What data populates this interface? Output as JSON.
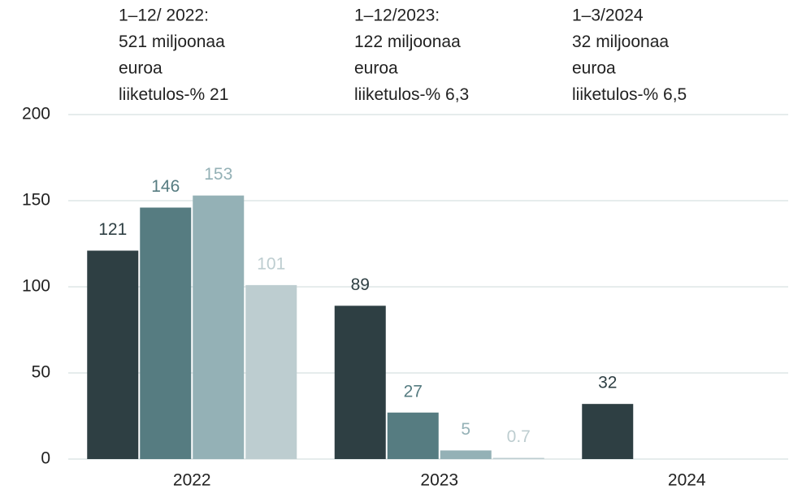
{
  "chart_data": {
    "type": "bar",
    "annotations": [
      {
        "lines": [
          "1–12/ 2022:",
          "521 miljoonaa",
          "euroa",
          "liiketulos-% 21"
        ]
      },
      {
        "lines": [
          "1–12/2023:",
          "122 miljoonaa",
          "euroa",
          "liiketulos-% 6,3"
        ]
      },
      {
        "lines": [
          "1–3/2024",
          "32 miljoonaa",
          "euroa",
          "liiketulos-% 6,5"
        ]
      }
    ],
    "categories": [
      "2022",
      "2023",
      "2024"
    ],
    "series": [
      {
        "color": "#2e3f43",
        "values": [
          121,
          89,
          32
        ]
      },
      {
        "color": "#567c81",
        "values": [
          146,
          27,
          null
        ]
      },
      {
        "color": "#94b1b6",
        "values": [
          153,
          5,
          null
        ]
      },
      {
        "color": "#bdcdd0",
        "values": [
          101,
          0.7,
          null
        ]
      }
    ],
    "ylim": [
      0,
      200
    ],
    "yticks": [
      0,
      50,
      100,
      150,
      200
    ],
    "grid": true
  }
}
